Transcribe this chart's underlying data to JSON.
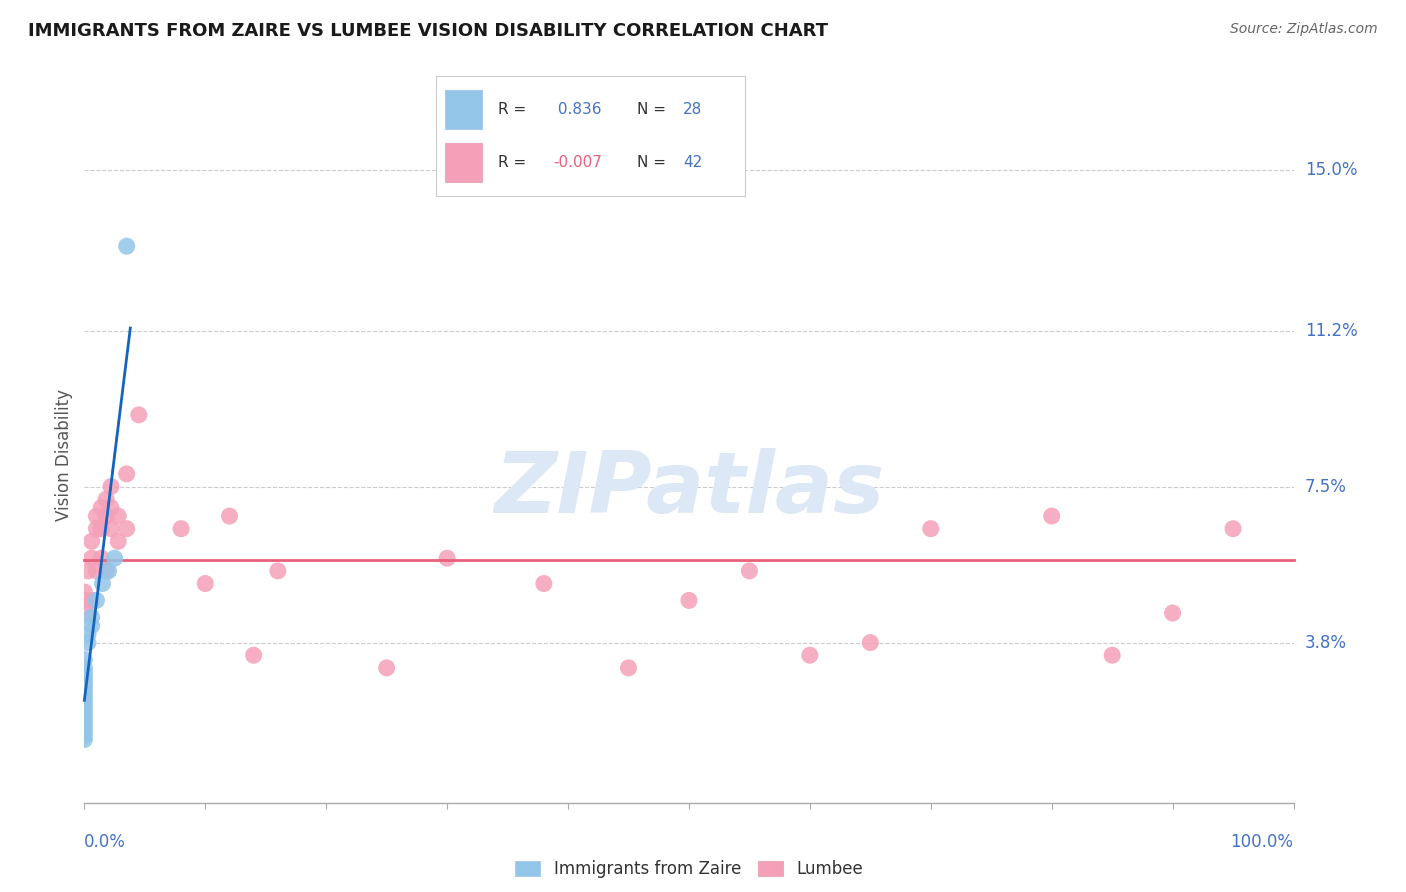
{
  "title": "IMMIGRANTS FROM ZAIRE VS LUMBEE VISION DISABILITY CORRELATION CHART",
  "source": "Source: ZipAtlas.com",
  "ylabel": "Vision Disability",
  "y_tick_labels": [
    "3.8%",
    "7.5%",
    "11.2%",
    "15.0%"
  ],
  "y_tick_values": [
    3.8,
    7.5,
    11.2,
    15.0
  ],
  "xlim": [
    0.0,
    100.0
  ],
  "ylim": [
    0.0,
    16.5
  ],
  "legend_r_zaire": "0.836",
  "legend_n_zaire": "28",
  "legend_r_lumbee": "-0.007",
  "legend_n_lumbee": "42",
  "zaire_color": "#92C5E8",
  "lumbee_color": "#F4A0B8",
  "zaire_line_color": "#1565C0",
  "lumbee_line_color": "#E8607A",
  "zaire_points": [
    [
      0.0,
      1.5
    ],
    [
      0.0,
      1.6
    ],
    [
      0.0,
      1.7
    ],
    [
      0.0,
      1.8
    ],
    [
      0.0,
      1.9
    ],
    [
      0.0,
      2.0
    ],
    [
      0.0,
      2.1
    ],
    [
      0.0,
      2.2
    ],
    [
      0.0,
      2.3
    ],
    [
      0.0,
      2.4
    ],
    [
      0.0,
      2.5
    ],
    [
      0.0,
      2.6
    ],
    [
      0.0,
      2.7
    ],
    [
      0.0,
      2.8
    ],
    [
      0.0,
      2.9
    ],
    [
      0.0,
      3.0
    ],
    [
      0.0,
      3.1
    ],
    [
      0.0,
      3.2
    ],
    [
      0.0,
      3.4
    ],
    [
      0.3,
      3.8
    ],
    [
      0.3,
      4.0
    ],
    [
      0.6,
      4.2
    ],
    [
      0.6,
      4.4
    ],
    [
      1.0,
      4.8
    ],
    [
      1.5,
      5.2
    ],
    [
      2.0,
      5.5
    ],
    [
      2.5,
      5.8
    ],
    [
      3.5,
      13.2
    ]
  ],
  "lumbee_points": [
    [
      0.0,
      4.8
    ],
    [
      0.0,
      5.0
    ],
    [
      0.3,
      5.5
    ],
    [
      0.3,
      4.5
    ],
    [
      0.6,
      6.2
    ],
    [
      0.6,
      4.8
    ],
    [
      0.6,
      5.8
    ],
    [
      1.0,
      6.8
    ],
    [
      1.0,
      5.5
    ],
    [
      1.0,
      6.5
    ],
    [
      1.4,
      7.0
    ],
    [
      1.4,
      6.5
    ],
    [
      1.4,
      5.8
    ],
    [
      1.8,
      7.2
    ],
    [
      1.8,
      6.8
    ],
    [
      1.8,
      5.5
    ],
    [
      2.2,
      7.5
    ],
    [
      2.2,
      7.0
    ],
    [
      2.2,
      6.5
    ],
    [
      2.8,
      6.8
    ],
    [
      2.8,
      6.2
    ],
    [
      3.5,
      7.8
    ],
    [
      3.5,
      6.5
    ],
    [
      4.5,
      9.2
    ],
    [
      8.0,
      6.5
    ],
    [
      10.0,
      5.2
    ],
    [
      12.0,
      6.8
    ],
    [
      14.0,
      3.5
    ],
    [
      16.0,
      5.5
    ],
    [
      25.0,
      3.2
    ],
    [
      30.0,
      5.8
    ],
    [
      38.0,
      5.2
    ],
    [
      45.0,
      3.2
    ],
    [
      50.0,
      4.8
    ],
    [
      55.0,
      5.5
    ],
    [
      60.0,
      3.5
    ],
    [
      65.0,
      3.8
    ],
    [
      70.0,
      6.5
    ],
    [
      80.0,
      6.8
    ],
    [
      85.0,
      3.5
    ],
    [
      90.0,
      4.5
    ],
    [
      95.0,
      6.5
    ]
  ],
  "background_color": "#FFFFFF",
  "grid_color": "#CCCCCC",
  "watermark_color": "#DCE8F5",
  "watermark_fontsize": 62
}
